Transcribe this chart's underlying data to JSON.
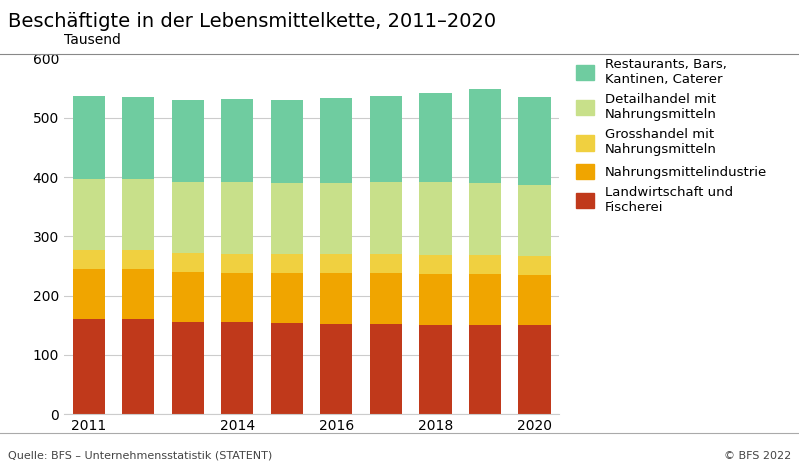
{
  "title": "Beschäftigte in der Lebensmittelkette, 2011–2020",
  "ylabel": "Tausend",
  "source": "Quelle: BFS – Unternehmensstatistik (STATENT)",
  "copyright": "© BFS 2022",
  "years": [
    2011,
    2012,
    2013,
    2014,
    2015,
    2016,
    2017,
    2018,
    2019,
    2020
  ],
  "xtick_labels": [
    "2011",
    "",
    "",
    "2014",
    "",
    "2016",
    "",
    "2018",
    "",
    "2020"
  ],
  "categories": [
    "Landwirtschaft und\nFischerei",
    "Nahrungsmittelindustrie",
    "Grosshandel mit\nNahrungsmitteln",
    "Detailhandel mit\nNahrungsmitteln",
    "Restaurants, Bars,\nKantinen, Caterer"
  ],
  "colors": [
    "#c0391b",
    "#f0a500",
    "#f0d040",
    "#c8e08a",
    "#6fcca0"
  ],
  "data": [
    [
      160,
      160,
      156,
      155,
      153,
      152,
      152,
      151,
      150,
      150
    ],
    [
      85,
      85,
      84,
      84,
      85,
      86,
      86,
      86,
      86,
      85
    ],
    [
      32,
      32,
      32,
      32,
      32,
      32,
      32,
      32,
      32,
      32
    ],
    [
      120,
      120,
      120,
      121,
      120,
      120,
      121,
      122,
      122,
      120
    ],
    [
      140,
      138,
      138,
      140,
      140,
      143,
      145,
      150,
      158,
      148
    ]
  ],
  "ylim": [
    0,
    600
  ],
  "yticks": [
    0,
    100,
    200,
    300,
    400,
    500,
    600
  ],
  "background_color": "#ffffff",
  "plot_area_color": "#ffffff",
  "grid_color": "#cccccc",
  "title_fontsize": 14,
  "label_fontsize": 10,
  "tick_fontsize": 10,
  "legend_fontsize": 9.5
}
